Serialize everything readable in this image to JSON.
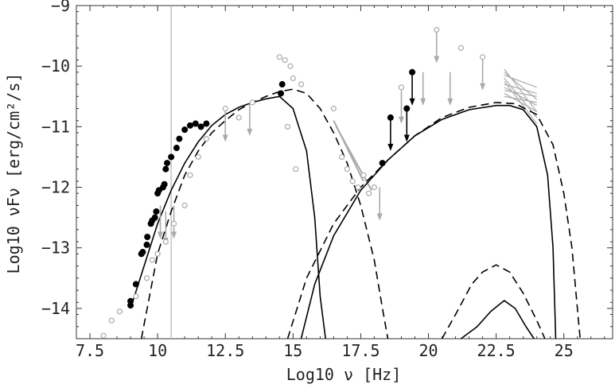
{
  "chart_data": {
    "type": "scatter",
    "title": "",
    "xlabel": "Log10 ν [Hz]",
    "ylabel": "Log10 νFν [erg/cm²/s]",
    "xlim": [
      7.0,
      26.8
    ],
    "ylim": [
      -14.5,
      -9.0
    ],
    "x_ticks": [
      "7.5",
      "10",
      "12.5",
      "15",
      "17.5",
      "20",
      "22.5",
      "25"
    ],
    "y_ticks": [
      "-9",
      "-10",
      "-11",
      "-12",
      "-13",
      "-14"
    ],
    "grid": false,
    "vertical_line_x": 10.5,
    "colors": {
      "simultaneous": "#000000",
      "archival": "#aaaaaa",
      "model_solid": "#000000",
      "model_dashed": "#000000"
    },
    "series": [
      {
        "style": "black-filled-points",
        "points": [
          [
            9.0,
            -13.95
          ],
          [
            9.0,
            -13.88
          ],
          [
            9.2,
            -13.6
          ],
          [
            9.4,
            -13.1
          ],
          [
            9.45,
            -13.07
          ],
          [
            9.6,
            -12.95
          ],
          [
            9.62,
            -12.82
          ],
          [
            9.75,
            -12.6
          ],
          [
            9.8,
            -12.55
          ],
          [
            9.9,
            -12.5
          ],
          [
            9.95,
            -12.4
          ],
          [
            10.0,
            -12.1
          ],
          [
            10.05,
            -12.05
          ],
          [
            10.2,
            -12.0
          ],
          [
            10.25,
            -11.95
          ],
          [
            10.3,
            -11.7
          ],
          [
            10.35,
            -11.6
          ],
          [
            10.5,
            -11.5
          ],
          [
            10.7,
            -11.35
          ],
          [
            10.8,
            -11.2
          ],
          [
            11.0,
            -11.05
          ],
          [
            11.2,
            -10.98
          ],
          [
            11.4,
            -10.95
          ],
          [
            11.6,
            -11.0
          ],
          [
            11.8,
            -10.95
          ],
          [
            14.55,
            -10.45
          ],
          [
            14.6,
            -10.3
          ],
          [
            18.3,
            -11.6
          ],
          [
            18.6,
            -10.85
          ],
          [
            19.2,
            -10.7
          ],
          [
            19.4,
            -10.1
          ]
        ]
      },
      {
        "style": "black-upper-limits",
        "points": [
          [
            18.6,
            -10.85
          ],
          [
            19.2,
            -10.7
          ],
          [
            19.4,
            -10.1
          ]
        ]
      },
      {
        "style": "gray-open-points",
        "points": [
          [
            8.0,
            -14.45
          ],
          [
            8.3,
            -14.2
          ],
          [
            8.6,
            -14.05
          ],
          [
            9.0,
            -13.95
          ],
          [
            9.2,
            -13.8
          ],
          [
            9.6,
            -13.5
          ],
          [
            9.8,
            -13.2
          ],
          [
            10.0,
            -13.1
          ],
          [
            10.3,
            -12.9
          ],
          [
            10.6,
            -12.6
          ],
          [
            11.0,
            -12.3
          ],
          [
            11.2,
            -11.8
          ],
          [
            11.5,
            -11.5
          ],
          [
            11.8,
            -11.2
          ],
          [
            12.5,
            -10.7
          ],
          [
            13.0,
            -10.85
          ],
          [
            13.5,
            -10.6
          ],
          [
            14.5,
            -9.85
          ],
          [
            14.7,
            -9.9
          ],
          [
            14.9,
            -10.0
          ],
          [
            15.0,
            -10.2
          ],
          [
            15.3,
            -10.3
          ],
          [
            15.1,
            -11.7
          ],
          [
            14.8,
            -11.0
          ],
          [
            16.5,
            -10.7
          ],
          [
            16.8,
            -11.5
          ],
          [
            17.0,
            -11.7
          ],
          [
            17.2,
            -11.9
          ],
          [
            17.4,
            -12.0
          ],
          [
            17.6,
            -11.8
          ],
          [
            17.8,
            -12.1
          ],
          [
            18.0,
            -12.0
          ],
          [
            19.0,
            -10.35
          ],
          [
            20.3,
            -9.4
          ],
          [
            21.2,
            -9.7
          ],
          [
            22.0,
            -9.85
          ]
        ]
      },
      {
        "style": "gray-upper-limits",
        "points": [
          [
            12.5,
            -10.7
          ],
          [
            13.4,
            -10.6
          ],
          [
            18.2,
            -12.0
          ],
          [
            19.0,
            -10.4
          ],
          [
            19.8,
            -10.1
          ],
          [
            20.3,
            -9.4
          ],
          [
            20.8,
            -10.1
          ],
          [
            22.0,
            -9.85
          ],
          [
            10.1,
            -12.3
          ],
          [
            10.3,
            -12.4
          ],
          [
            10.6,
            -12.3
          ]
        ]
      },
      {
        "style": "solid-synchrotron",
        "points": [
          [
            9.0,
            -14.0
          ],
          [
            9.5,
            -13.3
          ],
          [
            10.0,
            -12.6
          ],
          [
            10.5,
            -12.05
          ],
          [
            11.0,
            -11.6
          ],
          [
            11.5,
            -11.25
          ],
          [
            12.0,
            -10.98
          ],
          [
            12.5,
            -10.8
          ],
          [
            13.0,
            -10.68
          ],
          [
            13.5,
            -10.6
          ],
          [
            14.0,
            -10.54
          ],
          [
            14.5,
            -10.5
          ],
          [
            15.0,
            -10.7
          ],
          [
            15.5,
            -11.4
          ],
          [
            15.8,
            -12.5
          ],
          [
            16.0,
            -13.8
          ],
          [
            16.2,
            -14.5
          ]
        ]
      },
      {
        "style": "dashed-synchrotron",
        "points": [
          [
            9.4,
            -14.5
          ],
          [
            10.0,
            -13.1
          ],
          [
            10.5,
            -12.4
          ],
          [
            11.0,
            -11.8
          ],
          [
            11.5,
            -11.4
          ],
          [
            12.0,
            -11.1
          ],
          [
            12.5,
            -10.9
          ],
          [
            13.0,
            -10.72
          ],
          [
            13.5,
            -10.6
          ],
          [
            14.0,
            -10.5
          ],
          [
            14.5,
            -10.42
          ],
          [
            15.0,
            -10.38
          ],
          [
            15.5,
            -10.45
          ],
          [
            16.0,
            -10.7
          ],
          [
            16.5,
            -11.1
          ],
          [
            17.0,
            -11.6
          ],
          [
            17.5,
            -12.3
          ],
          [
            18.0,
            -13.2
          ],
          [
            18.3,
            -14.0
          ],
          [
            18.5,
            -14.5
          ]
        ]
      },
      {
        "style": "solid-compton",
        "points": [
          [
            15.3,
            -14.5
          ],
          [
            15.8,
            -13.6
          ],
          [
            16.5,
            -12.8
          ],
          [
            17.5,
            -12.05
          ],
          [
            18.5,
            -11.55
          ],
          [
            19.5,
            -11.15
          ],
          [
            20.5,
            -10.88
          ],
          [
            21.5,
            -10.72
          ],
          [
            22.5,
            -10.65
          ],
          [
            23.0,
            -10.65
          ],
          [
            23.5,
            -10.72
          ],
          [
            24.0,
            -11.0
          ],
          [
            24.4,
            -11.8
          ],
          [
            24.6,
            -13.0
          ],
          [
            24.7,
            -14.5
          ]
        ]
      },
      {
        "style": "dashed-compton",
        "points": [
          [
            14.8,
            -14.5
          ],
          [
            15.5,
            -13.5
          ],
          [
            16.5,
            -12.6
          ],
          [
            17.5,
            -12.0
          ],
          [
            18.5,
            -11.55
          ],
          [
            19.5,
            -11.15
          ],
          [
            20.5,
            -10.85
          ],
          [
            21.5,
            -10.68
          ],
          [
            22.5,
            -10.6
          ],
          [
            23.2,
            -10.62
          ],
          [
            24.0,
            -10.8
          ],
          [
            24.6,
            -11.3
          ],
          [
            25.0,
            -12.1
          ],
          [
            25.3,
            -13.0
          ],
          [
            25.5,
            -14.0
          ],
          [
            25.6,
            -14.5
          ]
        ]
      },
      {
        "style": "solid-hump",
        "points": [
          [
            21.2,
            -14.5
          ],
          [
            21.8,
            -14.3
          ],
          [
            22.3,
            -14.05
          ],
          [
            22.8,
            -13.87
          ],
          [
            23.2,
            -14.0
          ],
          [
            23.6,
            -14.3
          ],
          [
            23.9,
            -14.5
          ]
        ]
      },
      {
        "style": "dashed-hump",
        "points": [
          [
            20.5,
            -14.5
          ],
          [
            21.0,
            -14.1
          ],
          [
            21.6,
            -13.6
          ],
          [
            22.0,
            -13.4
          ],
          [
            22.5,
            -13.28
          ],
          [
            23.0,
            -13.4
          ],
          [
            23.5,
            -13.75
          ],
          [
            24.0,
            -14.2
          ],
          [
            24.3,
            -14.5
          ]
        ]
      }
    ]
  }
}
